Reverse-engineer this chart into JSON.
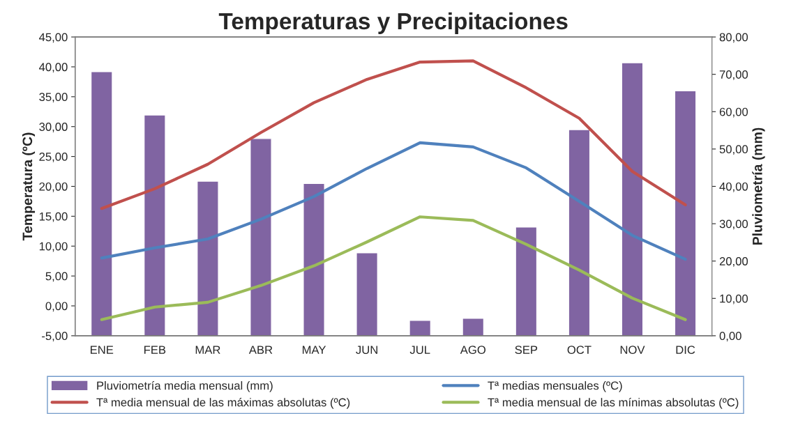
{
  "chart_data": {
    "type": "bar",
    "title": "Temperaturas y Precipitaciones",
    "ylabel": "Temperatura (ºC)",
    "y2label": "Pluviometría (mm)",
    "categories": [
      "ENE",
      "FEB",
      "MAR",
      "ABR",
      "MAY",
      "JUN",
      "JUL",
      "AGO",
      "SEP",
      "OCT",
      "NOV",
      "DIC"
    ],
    "series": [
      {
        "name": "Pluviometría media mensual (mm)",
        "axis": "y2",
        "color": "#8064a2",
        "values": [
          70.7,
          59.1,
          41.4,
          52.8,
          40.8,
          22.2,
          4.1,
          4.7,
          29.1,
          55.2,
          73.1,
          65.6
        ]
      },
      {
        "name": "Tª medias mensuales (ºC)",
        "type": "line",
        "color": "#4f81bd",
        "values": [
          8.0,
          9.7,
          11.2,
          14.5,
          18.3,
          23.0,
          27.3,
          26.6,
          23.1,
          17.5,
          11.8,
          7.8
        ]
      },
      {
        "name": "Tª media mensual de las máximas absolutas (ºC)",
        "type": "line",
        "color": "#c0504d",
        "values": [
          16.3,
          19.6,
          23.7,
          29.0,
          34.0,
          37.9,
          40.8,
          41.0,
          36.5,
          31.4,
          22.5,
          16.9
        ]
      },
      {
        "name": "Tª media mensual de las mínimas absolutas (ºC)",
        "type": "line",
        "color": "#9bbb59",
        "values": [
          -2.3,
          -0.2,
          0.6,
          3.4,
          6.7,
          10.7,
          14.9,
          14.3,
          10.3,
          6.0,
          1.3,
          -2.3
        ]
      }
    ],
    "ylim": [
      -5,
      45
    ],
    "yticks": [
      {
        "value": -5,
        "label": "-5,00"
      },
      {
        "value": 0,
        "label": "0,00"
      },
      {
        "value": 5,
        "label": "5,00"
      },
      {
        "value": 10,
        "label": "10,00"
      },
      {
        "value": 15,
        "label": "15,00"
      },
      {
        "value": 20,
        "label": "20,00"
      },
      {
        "value": 25,
        "label": "25,00"
      },
      {
        "value": 30,
        "label": "30,00"
      },
      {
        "value": 35,
        "label": "35,00"
      },
      {
        "value": 40,
        "label": "40,00"
      },
      {
        "value": 45,
        "label": "45,00"
      }
    ],
    "y2lim": [
      0,
      80
    ],
    "y2ticks": [
      {
        "value": 0,
        "label": "0,00"
      },
      {
        "value": 10,
        "label": "10,00"
      },
      {
        "value": 20,
        "label": "20,00"
      },
      {
        "value": 30,
        "label": "30,00"
      },
      {
        "value": 40,
        "label": "40,00"
      },
      {
        "value": 50,
        "label": "50,00"
      },
      {
        "value": 60,
        "label": "60,00"
      },
      {
        "value": 70,
        "label": "70,00"
      },
      {
        "value": 80,
        "label": "80,00"
      }
    ],
    "legend": "bottom",
    "marker": "none",
    "line_style": "solid",
    "grid": false
  }
}
